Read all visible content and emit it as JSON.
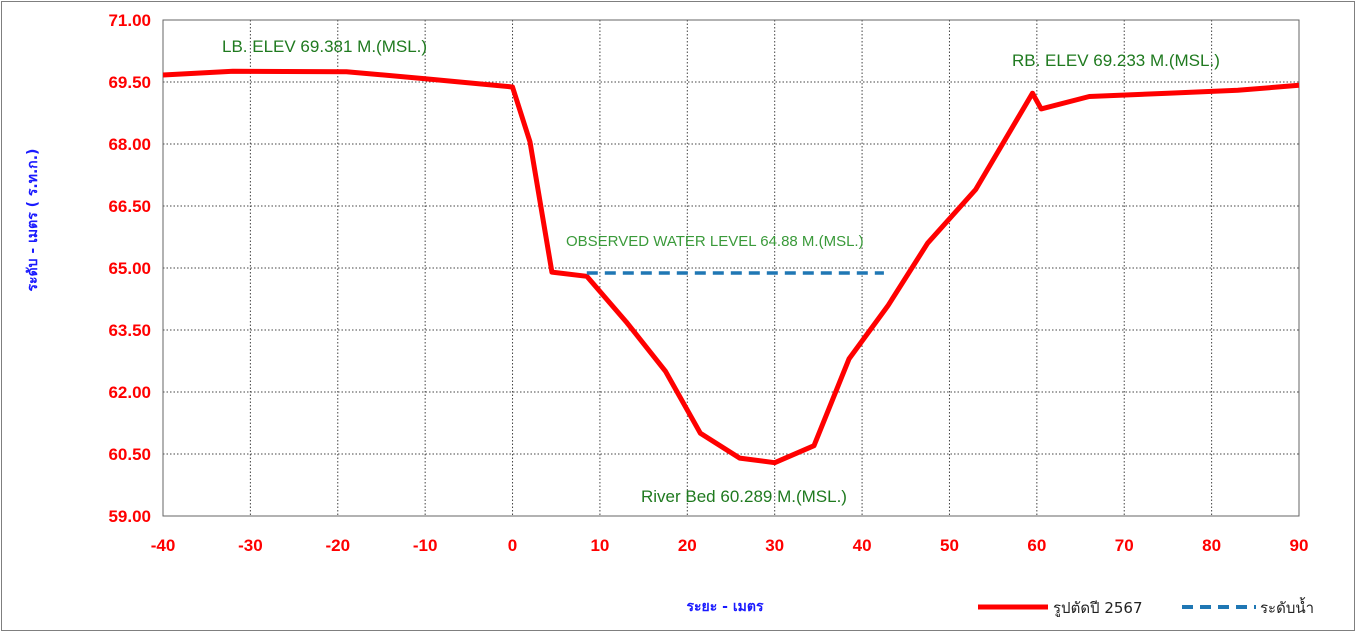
{
  "chart_data": {
    "type": "line",
    "xlabel": "ระยะ - เมตร",
    "ylabel": "ระดับ - เมตร ( ร.ท.ก.)",
    "xlim": [
      -40,
      90
    ],
    "ylim": [
      59.0,
      71.0
    ],
    "xticks": [
      -40,
      -30,
      -20,
      -10,
      0,
      10,
      20,
      30,
      40,
      50,
      60,
      70,
      80,
      90
    ],
    "yticks": [
      59.0,
      60.5,
      62.0,
      63.5,
      65.0,
      66.5,
      68.0,
      69.5,
      71.0
    ],
    "ytick_labels": [
      "59.00",
      "60.50",
      "62.00",
      "63.50",
      "65.00",
      "66.50",
      "68.00",
      "69.50",
      "71.00"
    ],
    "grid": true,
    "legend_position": "bottom-right",
    "series": [
      {
        "name": "รูปตัดปี 2567",
        "color": "#ff0000",
        "style": "solid",
        "x": [
          -40,
          -32,
          -19,
          -10,
          0,
          2,
          4.5,
          8.5,
          13,
          17.5,
          21.5,
          26,
          30,
          34.5,
          38.5,
          43,
          47.5,
          53,
          59.5,
          60.5,
          66,
          75,
          83,
          90
        ],
        "y": [
          69.67,
          69.76,
          69.75,
          69.58,
          69.38,
          68.05,
          64.9,
          64.8,
          63.7,
          62.5,
          61.0,
          60.4,
          60.29,
          60.7,
          62.8,
          64.1,
          65.6,
          66.9,
          69.23,
          68.85,
          69.15,
          69.23,
          69.3,
          69.42
        ]
      },
      {
        "name": "ระดับน้ำ",
        "color": "#1f77b4",
        "style": "dashed",
        "x": [
          8.5,
          42.5
        ],
        "y": [
          64.88,
          64.88
        ]
      }
    ],
    "annotations": [
      {
        "id": "lb",
        "text": "LB. ELEV 69.381 M.(MSL.)"
      },
      {
        "id": "rb",
        "text": "RB. ELEV  69.233 M.(MSL.)"
      },
      {
        "id": "water",
        "text": "OBSERVED WATER LEVEL 64.88 M.(MSL.)"
      },
      {
        "id": "bed",
        "text": "River  Bed  60.289 M.(MSL.)"
      }
    ]
  }
}
